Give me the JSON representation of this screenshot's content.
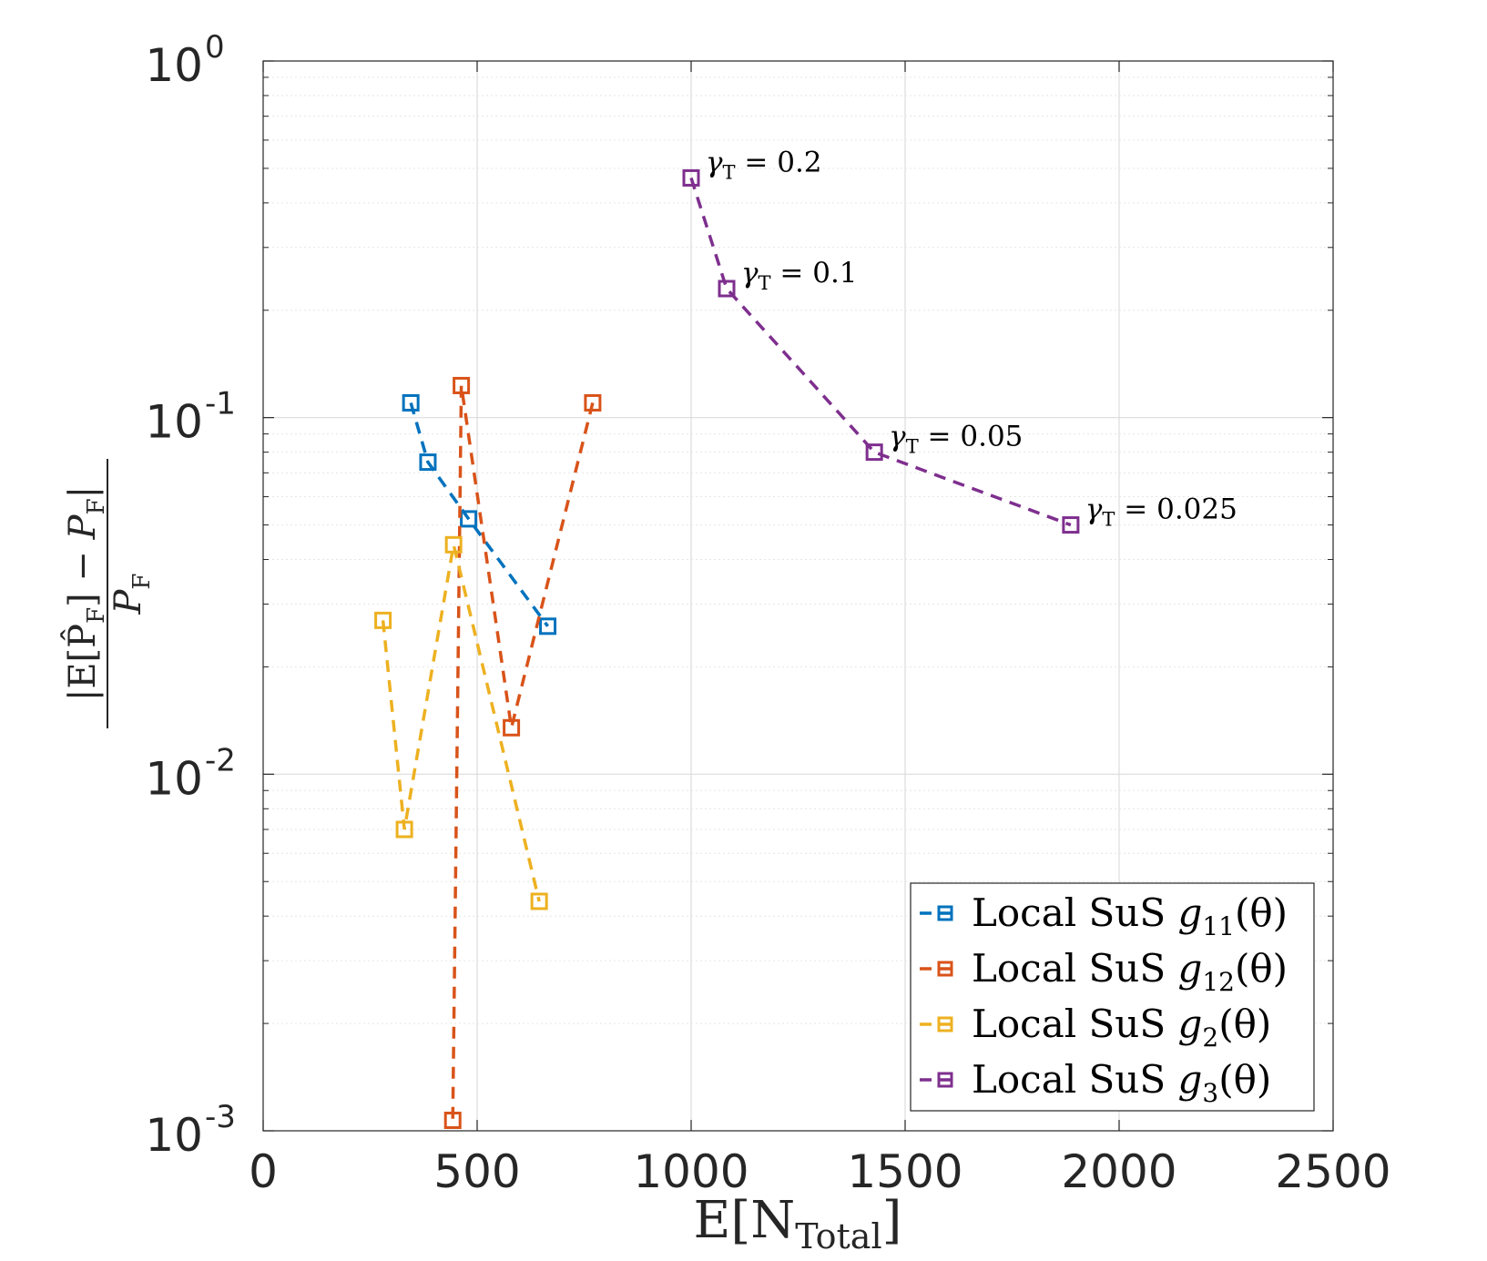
{
  "chart_data": {
    "type": "line",
    "xlabel": "E[N",
    "xlabel_sub": "Total",
    "xlabel_close": "]",
    "ylabel": "|E[P̂F]−PF| / PF",
    "xlim": [
      0,
      2500
    ],
    "ylim": [
      0.001,
      1
    ],
    "yscale": "log",
    "grid": true,
    "x_ticks": [
      "0",
      "500",
      "1000",
      "1500",
      "2000",
      "2500"
    ],
    "y_ticks": [
      {
        "base": "10",
        "exp": "0"
      },
      {
        "base": "10",
        "exp": "-1"
      },
      {
        "base": "10",
        "exp": "-2"
      },
      {
        "base": "10",
        "exp": "-3"
      }
    ],
    "legend_position": "bottom-right",
    "series": [
      {
        "name": "Local SuS g11(θ)",
        "label_main": "Local SuS ",
        "label_fn": "g",
        "label_sub": "11",
        "label_arg": "(θ)",
        "color": "#0072BD",
        "x": [
          345,
          385,
          480,
          665
        ],
        "y": [
          0.11,
          0.075,
          0.052,
          0.026
        ]
      },
      {
        "name": "Local SuS g12(θ)",
        "label_main": "Local SuS ",
        "label_fn": "g",
        "label_sub": "12",
        "label_arg": "(θ)",
        "color": "#D95319",
        "x": [
          770,
          580,
          463,
          443
        ],
        "y": [
          0.11,
          0.0135,
          0.123,
          0.00107
        ]
      },
      {
        "name": "Local SuS g2(θ)",
        "label_main": "Local SuS ",
        "label_fn": "g",
        "label_sub": "2",
        "label_arg": "(θ)",
        "color": "#EDB120",
        "x": [
          280,
          330,
          445,
          645
        ],
        "y": [
          0.027,
          0.007,
          0.044,
          0.0044
        ]
      },
      {
        "name": "Local SuS g3(θ)",
        "label_main": "Local SuS ",
        "label_fn": "g",
        "label_sub": "3",
        "label_arg": "(θ)",
        "color": "#7E2F8E",
        "x": [
          1000,
          1083,
          1428,
          1887
        ],
        "y": [
          0.47,
          0.23,
          0.08,
          0.05
        ]
      }
    ],
    "annotations": [
      {
        "sym": "γ",
        "sub": "T",
        "text": " = 0.2",
        "x": 1000,
        "y": 0.47
      },
      {
        "sym": "γ",
        "sub": "T",
        "text": " = 0.1",
        "x": 1083,
        "y": 0.23
      },
      {
        "sym": "γ",
        "sub": "T",
        "text": " = 0.05",
        "x": 1428,
        "y": 0.08
      },
      {
        "sym": "γ",
        "sub": "T",
        "text": " = 0.025",
        "x": 1887,
        "y": 0.05
      }
    ]
  }
}
